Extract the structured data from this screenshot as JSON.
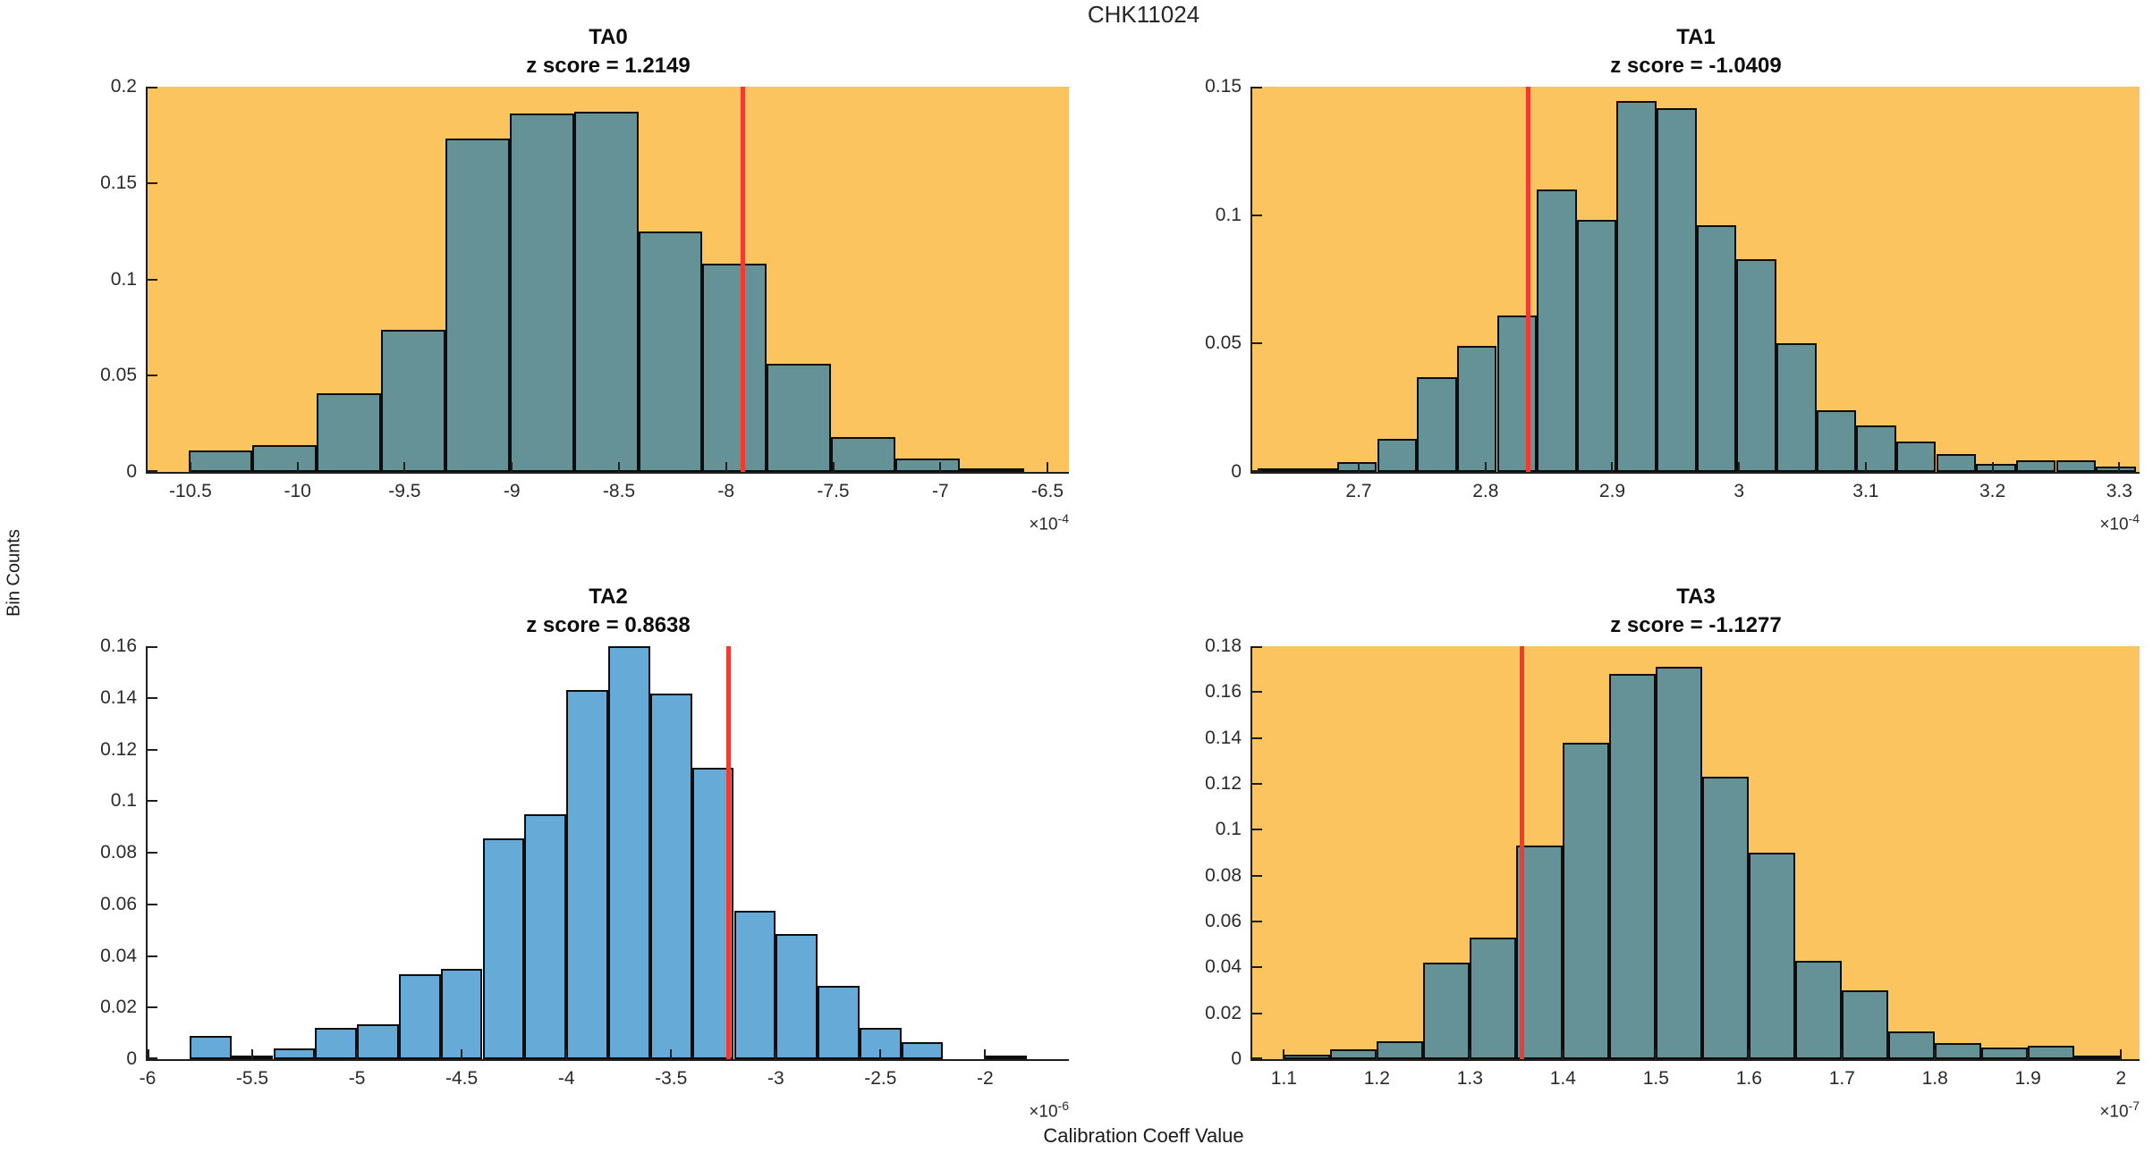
{
  "figure": {
    "title": "CHK11024",
    "xlabel": "Calibration Coeff Value",
    "ylabel": "Bin Counts"
  },
  "colors": {
    "highlight_background": "#FCC45F",
    "plain_background": "#FFFFFF",
    "bar_on_highlight": "#649297",
    "bar_on_plain": "#66AAD7",
    "bar_edge": "#0D0D0D",
    "red_line": "#F23B30",
    "axis": "#1F1F1F"
  },
  "chart_data": [
    {
      "type": "bar",
      "title": "TA0",
      "subtitle": "z score = 1.2149",
      "z_score": 1.2149,
      "background": "#FCC45F",
      "bar_fill": "#649297",
      "xlim": [
        -10.7,
        -6.4
      ],
      "ylim": [
        0,
        0.2
      ],
      "xticks": [
        -10.5,
        -10,
        -9.5,
        -9,
        -8.5,
        -8,
        -7.5,
        -7,
        -6.5
      ],
      "yticks": [
        0,
        0.05,
        0.1,
        0.15,
        0.2
      ],
      "x_offset": {
        "base": "×10",
        "exp": "-4"
      },
      "bin_start": -10.51,
      "bin_width": 0.3,
      "values": [
        0.011,
        0.014,
        0.041,
        0.074,
        0.173,
        0.186,
        0.187,
        0.125,
        0.108,
        0.056,
        0.018,
        0.007,
        0.002
      ],
      "red_line_x": -7.92,
      "grid": false,
      "legend": null
    },
    {
      "type": "bar",
      "title": "TA1",
      "subtitle": "z score = -1.0409",
      "z_score": -1.0409,
      "background": "#FCC45F",
      "bar_fill": "#649297",
      "xlim": [
        2.616,
        3.316
      ],
      "ylim": [
        0,
        0.15
      ],
      "xticks": [
        2.7,
        2.8,
        2.9,
        3,
        3.1,
        3.2,
        3.3
      ],
      "yticks": [
        0,
        0.05,
        0.1,
        0.15
      ],
      "x_offset": {
        "base": "×10",
        "exp": "-4"
      },
      "bin_start": 2.62,
      "bin_width": 0.0315,
      "values": [
        0.0012,
        0.0012,
        0.004,
        0.013,
        0.037,
        0.049,
        0.061,
        0.11,
        0.098,
        0.1445,
        0.1415,
        0.096,
        0.083,
        0.05,
        0.024,
        0.018,
        0.012,
        0.007,
        0.003,
        0.0045,
        0.0045,
        0.002
      ],
      "red_line_x": 2.834,
      "grid": false,
      "legend": null
    },
    {
      "type": "bar",
      "title": "TA2",
      "subtitle": "z score = 0.8638",
      "z_score": 0.8638,
      "background": "#FFFFFF",
      "bar_fill": "#66AAD7",
      "xlim": [
        -6.0,
        -1.6
      ],
      "ylim": [
        0,
        0.16
      ],
      "xticks": [
        -6,
        -5.5,
        -5,
        -4.5,
        -4,
        -3.5,
        -3,
        -2.5,
        -2
      ],
      "yticks": [
        0,
        0.02,
        0.04,
        0.06,
        0.08,
        0.1,
        0.12,
        0.14,
        0.16
      ],
      "x_offset": {
        "base": "×10",
        "exp": "-6"
      },
      "bin_start": -5.8,
      "bin_width": 0.2,
      "values": [
        0.009,
        0.0015,
        0.004,
        0.012,
        0.0135,
        0.033,
        0.035,
        0.0855,
        0.095,
        0.143,
        0.16,
        0.1415,
        0.113,
        0.0575,
        0.0485,
        0.0285,
        0.012,
        0.0065,
        0,
        0.0015
      ],
      "red_line_x": -3.225,
      "grid": false,
      "legend": null
    },
    {
      "type": "bar",
      "title": "TA3",
      "subtitle": "z score = -1.1277",
      "z_score": -1.1277,
      "background": "#FCC45F",
      "bar_fill": "#649297",
      "xlim": [
        1.066,
        2.02
      ],
      "ylim": [
        0,
        0.18
      ],
      "xticks": [
        1.1,
        1.2,
        1.3,
        1.4,
        1.5,
        1.6,
        1.7,
        1.8,
        1.9,
        2
      ],
      "yticks": [
        0,
        0.02,
        0.04,
        0.06,
        0.08,
        0.1,
        0.12,
        0.14,
        0.16,
        0.18
      ],
      "x_offset": {
        "base": "×10",
        "exp": "-7"
      },
      "bin_start": 1.1,
      "bin_width": 0.05,
      "values": [
        0.002,
        0.0045,
        0.008,
        0.042,
        0.053,
        0.093,
        0.138,
        0.168,
        0.171,
        0.123,
        0.09,
        0.043,
        0.03,
        0.012,
        0.007,
        0.005,
        0.006,
        0.0015
      ],
      "red_line_x": 1.356,
      "grid": false,
      "legend": null
    }
  ]
}
